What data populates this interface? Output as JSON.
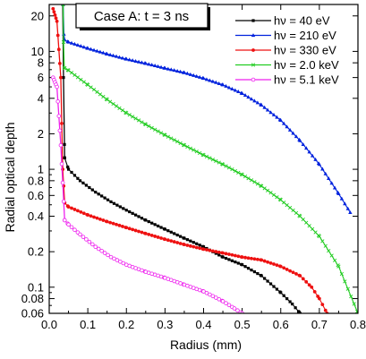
{
  "chart_data": {
    "type": "line",
    "title": "Case A: t = 3 ns",
    "xlabel": "Radius (mm)",
    "ylabel": "Radial optical depth",
    "xlim": [
      0.0,
      0.8
    ],
    "ylim": [
      0.06,
      25
    ],
    "yscale": "log",
    "xticks": [
      "0.0",
      "0.1",
      "0.2",
      "0.3",
      "0.4",
      "0.5",
      "0.6",
      "0.7",
      "0.8"
    ],
    "yticks": [
      "0.06",
      "0.08",
      "0.1",
      "0.2",
      "0.4",
      "0.6",
      "0.8",
      "1",
      "2",
      "4",
      "6",
      "8",
      "10",
      "20"
    ],
    "legend_position": "top-right",
    "series": [
      {
        "name": "hν = 40 eV",
        "color": "#000000",
        "marker": "square",
        "x": [
          0.04,
          0.05,
          0.08,
          0.12,
          0.16,
          0.2,
          0.25,
          0.3,
          0.35,
          0.4,
          0.45,
          0.5,
          0.55,
          0.6,
          0.63,
          0.65
        ],
        "y": [
          1.25,
          1.0,
          0.8,
          0.64,
          0.53,
          0.45,
          0.37,
          0.31,
          0.26,
          0.22,
          0.18,
          0.155,
          0.125,
          0.09,
          0.072,
          0.06
        ]
      },
      {
        "name": "hν = 210 eV",
        "color": "#0022dd",
        "marker": "triangle",
        "x": [
          0.04,
          0.05,
          0.1,
          0.15,
          0.2,
          0.25,
          0.3,
          0.35,
          0.4,
          0.45,
          0.5,
          0.55,
          0.6,
          0.65,
          0.7,
          0.75,
          0.78
        ],
        "y": [
          12.5,
          12.0,
          10.6,
          9.5,
          8.6,
          7.9,
          7.2,
          6.6,
          5.9,
          5.2,
          4.4,
          3.5,
          2.6,
          1.75,
          1.1,
          0.62,
          0.43
        ]
      },
      {
        "name": "hν = 330 eV",
        "color": "#ee1111",
        "marker": "circle-filled",
        "x": [
          0.04,
          0.05,
          0.1,
          0.15,
          0.2,
          0.25,
          0.3,
          0.35,
          0.4,
          0.45,
          0.5,
          0.55,
          0.6,
          0.65,
          0.68,
          0.7,
          0.72
        ],
        "y": [
          0.52,
          0.48,
          0.41,
          0.36,
          0.32,
          0.285,
          0.255,
          0.23,
          0.21,
          0.195,
          0.18,
          0.17,
          0.15,
          0.125,
          0.1,
          0.08,
          0.06
        ]
      },
      {
        "name": "hν = 2.0 keV",
        "color": "#22cc22",
        "marker": "x",
        "x": [
          0.04,
          0.05,
          0.1,
          0.15,
          0.2,
          0.25,
          0.3,
          0.35,
          0.4,
          0.45,
          0.5,
          0.55,
          0.6,
          0.65,
          0.7,
          0.75,
          0.8
        ],
        "y": [
          7.2,
          6.9,
          5.2,
          3.9,
          3.0,
          2.4,
          1.95,
          1.6,
          1.32,
          1.1,
          0.9,
          0.72,
          0.55,
          0.4,
          0.27,
          0.15,
          0.06
        ]
      },
      {
        "name": "hν = 5.1 keV",
        "color": "#ee22ee",
        "marker": "circle-open",
        "x": [
          0.04,
          0.05,
          0.08,
          0.12,
          0.16,
          0.2,
          0.25,
          0.3,
          0.35,
          0.4,
          0.45,
          0.48,
          0.5
        ],
        "y": [
          0.37,
          0.34,
          0.28,
          0.22,
          0.18,
          0.155,
          0.135,
          0.12,
          0.105,
          0.092,
          0.076,
          0.066,
          0.06
        ]
      }
    ]
  }
}
